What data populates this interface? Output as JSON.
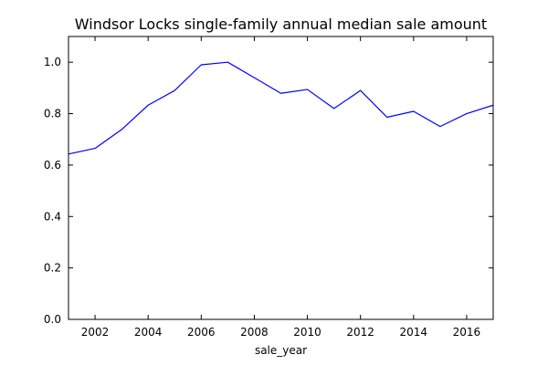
{
  "chart_data": {
    "type": "line",
    "title": "Windsor Locks single-family annual median sale amount",
    "xlabel": "sale_year",
    "ylabel": "",
    "xlim": [
      2001,
      2017
    ],
    "ylim": [
      0.0,
      1.1
    ],
    "x_ticks": [
      2002,
      2004,
      2006,
      2008,
      2010,
      2012,
      2014,
      2016
    ],
    "y_ticks": [
      0.0,
      0.2,
      0.4,
      0.6,
      0.8,
      1.0
    ],
    "y_tick_labels": [
      "0.0",
      "0.2",
      "0.4",
      "0.6",
      "0.8",
      "1.0"
    ],
    "grid": false,
    "legend": "none",
    "line_color": "#0000ff",
    "series": [
      {
        "x": [
          2001,
          2002,
          2003,
          2004,
          2005,
          2006,
          2007,
          2008,
          2009,
          2010,
          2011,
          2012,
          2013,
          2014,
          2015,
          2016,
          2017
        ],
        "values": [
          0.643,
          0.665,
          0.738,
          0.833,
          0.89,
          0.99,
          1.0,
          0.94,
          0.879,
          0.894,
          0.82,
          0.89,
          0.786,
          0.809,
          0.75,
          0.8,
          0.833
        ]
      }
    ]
  }
}
